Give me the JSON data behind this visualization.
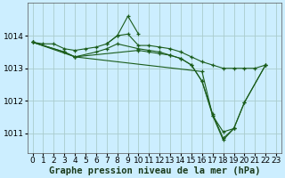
{
  "background_color": "#cceeff",
  "grid_color": "#aacccc",
  "line_color": "#1a5c1a",
  "marker_color": "#1a5c1a",
  "xlabel": "Graphe pression niveau de la mer (hPa)",
  "xlabel_fontsize": 7.5,
  "tick_fontsize": 6.5,
  "xlim": [
    -0.5,
    23.5
  ],
  "ylim": [
    1010.4,
    1015.0
  ],
  "yticks": [
    1011,
    1012,
    1013,
    1014
  ],
  "xticks": [
    0,
    1,
    2,
    3,
    4,
    5,
    6,
    7,
    8,
    9,
    10,
    11,
    12,
    13,
    14,
    15,
    16,
    17,
    18,
    19,
    20,
    21,
    22,
    23
  ],
  "series": [
    {
      "x": [
        0,
        1,
        2,
        3,
        4,
        5,
        6,
        7,
        8,
        9,
        10,
        11,
        12,
        13,
        14,
        15,
        16,
        17,
        18,
        19,
        20,
        21,
        22
      ],
      "y": [
        1013.8,
        1013.75,
        1013.75,
        1013.6,
        1013.55,
        1013.6,
        1013.65,
        1013.75,
        1014.0,
        1014.05,
        1013.7,
        1013.7,
        1013.65,
        1013.6,
        1013.5,
        1013.35,
        1013.2,
        1013.1,
        1013.0,
        1013.0,
        1013.0,
        1013.0,
        1013.1
      ]
    },
    {
      "x": [
        7,
        8,
        9,
        10
      ],
      "y": [
        1013.75,
        1014.0,
        1014.6,
        1014.05
      ]
    },
    {
      "x": [
        0,
        3,
        4,
        6,
        7,
        8,
        10,
        11,
        12,
        13,
        14,
        15,
        16,
        17,
        18,
        19,
        20,
        22
      ],
      "y": [
        1013.8,
        1013.5,
        1013.35,
        1013.5,
        1013.6,
        1013.75,
        1013.6,
        1013.55,
        1013.5,
        1013.4,
        1013.3,
        1013.1,
        1012.6,
        1011.6,
        1010.85,
        1011.15,
        1011.95,
        1013.1
      ]
    },
    {
      "x": [
        0,
        3,
        4,
        10,
        11,
        12,
        13,
        14,
        15,
        16,
        17,
        18,
        19,
        20,
        22
      ],
      "y": [
        1013.8,
        1013.5,
        1013.35,
        1013.55,
        1013.5,
        1013.45,
        1013.4,
        1013.3,
        1013.1,
        1012.6,
        1011.55,
        1010.8,
        1011.15,
        1011.95,
        1013.1
      ]
    },
    {
      "x": [
        0,
        4,
        16,
        17,
        18,
        19
      ],
      "y": [
        1013.8,
        1013.35,
        1012.9,
        1011.55,
        1011.05,
        1011.15
      ]
    }
  ]
}
